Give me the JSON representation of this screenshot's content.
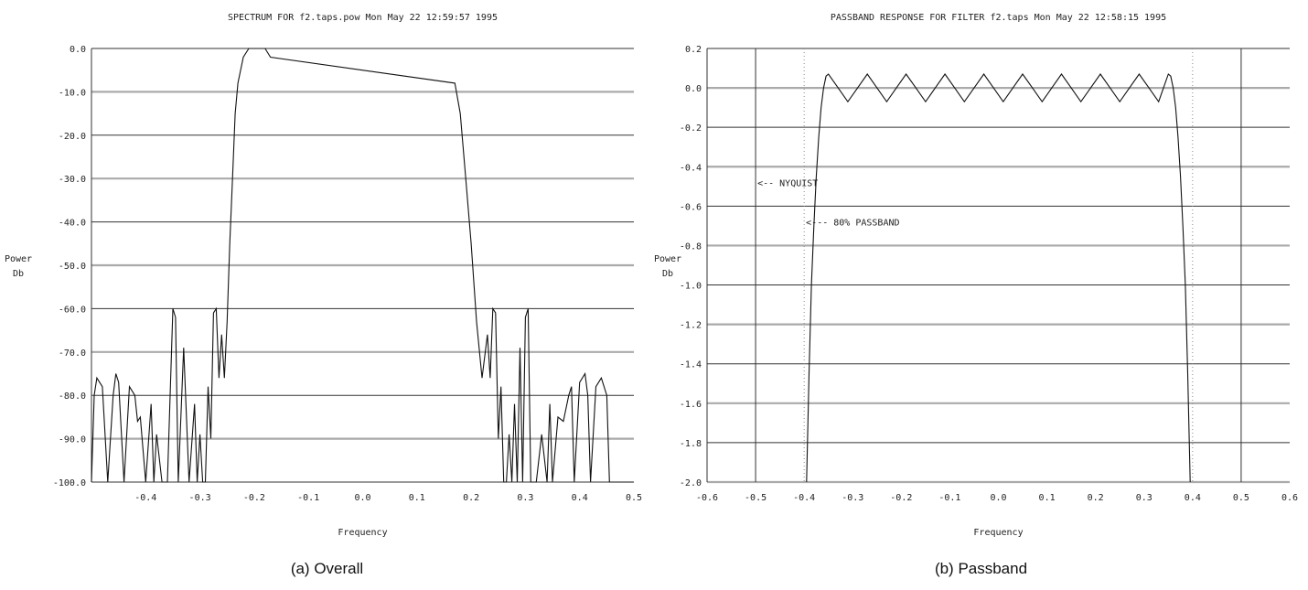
{
  "captions": [
    "(a) Overall",
    "(b) Passband"
  ],
  "chart_data": [
    {
      "type": "line",
      "title": "SPECTRUM FOR f2.taps.pow Mon May 22 12:59:57 1995",
      "xlabel": "Frequency",
      "ylabel": [
        "Power",
        "Db"
      ],
      "xlim": [
        -0.5,
        0.5
      ],
      "ylim": [
        -100,
        0
      ],
      "xticks": [
        -0.4,
        -0.3,
        -0.2,
        -0.1,
        0.0,
        0.1,
        0.2,
        0.3,
        0.4,
        0.5
      ],
      "xtick_labels": [
        "-0.4",
        "-0.3",
        "-0.2",
        "-0.1",
        "0.0",
        "0.1",
        "0.2",
        "0.3",
        "0.4",
        "0.5"
      ],
      "yticks": [
        0,
        -10,
        -20,
        -30,
        -40,
        -50,
        -60,
        -70,
        -80,
        -90,
        -100
      ],
      "ytick_labels": [
        "0.0",
        "-10.0",
        "-20.0",
        "-30.0",
        "-40.0",
        "-50.0",
        "-60.0",
        "-70.0",
        "-80.0",
        "-90.0",
        "-100.0"
      ],
      "grid": "horizontal",
      "series": [
        {
          "x": [
            -0.5,
            -0.495,
            -0.49,
            -0.48,
            -0.47,
            -0.46,
            -0.455,
            -0.45,
            -0.44,
            -0.43,
            -0.42,
            -0.415,
            -0.41,
            -0.4,
            -0.39,
            -0.385,
            -0.38,
            -0.37,
            -0.36,
            -0.35,
            -0.345,
            -0.34,
            -0.33,
            -0.32,
            -0.31,
            -0.305,
            -0.3,
            -0.295,
            -0.29,
            -0.285,
            -0.28,
            -0.275,
            -0.27,
            -0.265,
            -0.26,
            -0.255,
            -0.25,
            -0.245,
            -0.24,
            -0.235,
            -0.23,
            -0.22,
            -0.21,
            -0.2,
            -0.19,
            -0.18,
            -0.17,
            0.17,
            0.18,
            0.19,
            0.2,
            0.21,
            0.22,
            0.23,
            0.235,
            0.24,
            0.245,
            0.25,
            0.255,
            0.26,
            0.265,
            0.27,
            0.275,
            0.28,
            0.285,
            0.29,
            0.295,
            0.3,
            0.305,
            0.31,
            0.32,
            0.33,
            0.34,
            0.345,
            0.35,
            0.36,
            0.37,
            0.38,
            0.385,
            0.39,
            0.4,
            0.41,
            0.415,
            0.42,
            0.43,
            0.44,
            0.45,
            0.455,
            0.46,
            0.47,
            0.48,
            0.49,
            0.495,
            0.5
          ],
          "y": [
            -100,
            -80,
            -76,
            -78,
            -100,
            -80,
            -75,
            -77,
            -100,
            -78,
            -80,
            -86,
            -85,
            -100,
            -82,
            -100,
            -89,
            -100,
            -100,
            -60,
            -62,
            -100,
            -69,
            -100,
            -82,
            -100,
            -89,
            -100,
            -100,
            -78,
            -90,
            -61,
            -60,
            -76,
            -66,
            -76,
            -63,
            -45,
            -30,
            -15,
            -8,
            -2,
            0,
            0,
            0,
            0,
            -2,
            -8,
            -15,
            -30,
            -45,
            -63,
            -76,
            -66,
            -76,
            -60,
            -61,
            -90,
            -78,
            -100,
            -100,
            -89,
            -100,
            -82,
            -100,
            -69,
            -100,
            -62,
            -60,
            -100,
            -100,
            -89,
            -100,
            -82,
            -100,
            -85,
            -86,
            -80,
            -78,
            -100,
            -77,
            -75,
            -80,
            -100,
            -78,
            -76,
            -80,
            -100,
            -100,
            -100,
            -100,
            -100,
            -100,
            -100
          ]
        }
      ]
    },
    {
      "type": "line",
      "title": "PASSBAND RESPONSE FOR FILTER f2.taps Mon May 22 12:58:15 1995",
      "xlabel": "Frequency",
      "ylabel": [
        "Power",
        "Db"
      ],
      "xlim": [
        -0.6,
        0.6
      ],
      "ylim": [
        -2.0,
        0.2
      ],
      "xticks": [
        -0.6,
        -0.5,
        -0.4,
        -0.3,
        -0.2,
        -0.1,
        0.0,
        0.1,
        0.2,
        0.3,
        0.4,
        0.5,
        0.6
      ],
      "xtick_labels": [
        "-0.6",
        "-0.5",
        "-0.4",
        "-0.3",
        "-0.2",
        "-0.1",
        "0.0",
        "0.1",
        "0.2",
        "0.3",
        "0.4",
        "0.5",
        "0.6"
      ],
      "yticks": [
        0.2,
        0.0,
        -0.2,
        -0.4,
        -0.6,
        -0.8,
        -1.0,
        -1.2,
        -1.4,
        -1.6,
        -1.8,
        -2.0
      ],
      "ytick_labels": [
        "0.2",
        "0.0",
        "-0.2",
        "-0.4",
        "-0.6",
        "-0.8",
        "-1.0",
        "-1.2",
        "-1.4",
        "-1.6",
        "-1.8",
        "-2.0"
      ],
      "grid": "horizontal",
      "vlines_solid": [
        -0.5,
        0.5
      ],
      "vlines_dotted": [
        -0.4,
        0.4
      ],
      "annotations": [
        {
          "text": "<-- NYQUIST",
          "x": -0.5,
          "y": -0.48
        },
        {
          "text": "<--- 80% PASSBAND",
          "x": -0.4,
          "y": -0.68
        }
      ],
      "series": [
        {
          "x": [
            -0.395,
            -0.39,
            -0.385,
            -0.38,
            -0.375,
            -0.37,
            -0.365,
            -0.36,
            -0.355,
            -0.35,
            -0.33,
            -0.31,
            -0.29,
            -0.27,
            -0.25,
            -0.23,
            -0.21,
            -0.19,
            -0.17,
            -0.15,
            -0.13,
            -0.11,
            -0.09,
            -0.07,
            -0.05,
            -0.03,
            -0.01,
            0.01,
            0.03,
            0.05,
            0.07,
            0.09,
            0.11,
            0.13,
            0.15,
            0.17,
            0.19,
            0.21,
            0.23,
            0.25,
            0.27,
            0.29,
            0.31,
            0.33,
            0.35,
            0.355,
            0.36,
            0.365,
            0.37,
            0.375,
            0.38,
            0.385,
            0.39,
            0.395
          ],
          "y": [
            -2.0,
            -1.45,
            -1.0,
            -0.7,
            -0.45,
            -0.25,
            -0.1,
            0.0,
            0.06,
            0.07,
            0.0,
            -0.07,
            0.0,
            0.07,
            0.0,
            -0.07,
            0.0,
            0.07,
            0.0,
            -0.07,
            0.0,
            0.07,
            0.0,
            -0.07,
            0.0,
            0.07,
            0.0,
            -0.07,
            0.0,
            0.07,
            0.0,
            -0.07,
            0.0,
            0.07,
            0.0,
            -0.07,
            0.0,
            0.07,
            0.0,
            -0.07,
            0.0,
            0.07,
            0.0,
            -0.07,
            0.07,
            0.06,
            0.0,
            -0.1,
            -0.25,
            -0.45,
            -0.7,
            -1.0,
            -1.45,
            -2.0
          ]
        }
      ]
    }
  ]
}
